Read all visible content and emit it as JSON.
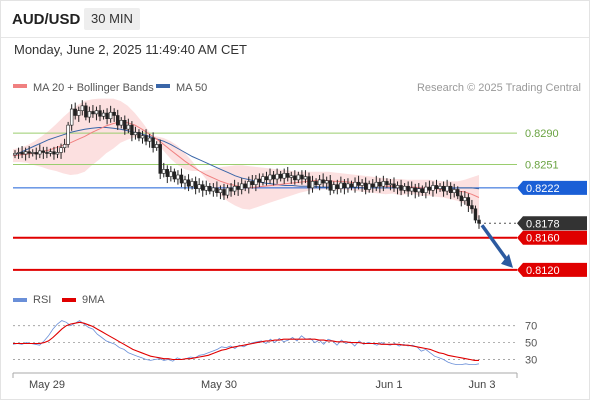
{
  "header": {
    "symbol": "AUD/USD",
    "timeframe": "30 MIN",
    "datetime": "Monday, June 2, 2025 11:49:40 AM CET"
  },
  "legend": {
    "ma20": "MA 20 + Bollinger Bands",
    "ma50": "MA 50",
    "credit": "Research © 2025 Trading Central",
    "rsi": "RSI",
    "rsi_ma": "9MA"
  },
  "colors": {
    "ma20": "#f08080",
    "bollinger": "#fbdada",
    "ma50": "#3a66a8",
    "green_level": "#9acd6e",
    "pivot": "#1a5fd6",
    "support": "#e00000",
    "current": "#333333",
    "candle_up": "#ffffff",
    "candle_down": "#222222",
    "rsi": "#6a8fd8",
    "rsi_ma": "#e00000",
    "arrow": "#2c5aa0"
  },
  "chart_data": [
    {
      "type": "candlestick",
      "x_labels": [
        "May 29",
        "May 30",
        "Jun 1",
        "Jun 3"
      ],
      "ylim": [
        0.81,
        0.833
      ],
      "levels": [
        {
          "value": 0.829,
          "label": "0.8290",
          "style": "green"
        },
        {
          "value": 0.8251,
          "label": "0.8251",
          "style": "green"
        },
        {
          "value": 0.8222,
          "label": "0.8222",
          "style": "pivot"
        },
        {
          "value": 0.8178,
          "label": "0.8178",
          "style": "current"
        },
        {
          "value": 0.816,
          "label": "0.8160",
          "style": "support"
        },
        {
          "value": 0.812,
          "label": "0.8120",
          "style": "support"
        }
      ],
      "close": [
        0.8265,
        0.8266,
        0.8264,
        0.8267,
        0.8265,
        0.8266,
        0.8264,
        0.8268,
        0.8266,
        0.8265,
        0.8267,
        0.8264,
        0.8266,
        0.8272,
        0.8276,
        0.83,
        0.832,
        0.8312,
        0.8318,
        0.8324,
        0.831,
        0.8317,
        0.8314,
        0.8318,
        0.8311,
        0.8315,
        0.8308,
        0.8316,
        0.8312,
        0.83,
        0.8306,
        0.8295,
        0.83,
        0.8288,
        0.8291,
        0.8284,
        0.8287,
        0.828,
        0.8284,
        0.8272,
        0.8276,
        0.824,
        0.8245,
        0.8236,
        0.8242,
        0.8233,
        0.8238,
        0.8228,
        0.8232,
        0.8224,
        0.823,
        0.8221,
        0.8226,
        0.8219,
        0.8224,
        0.8218,
        0.8222,
        0.8216,
        0.822,
        0.8213,
        0.8222,
        0.8218,
        0.8224,
        0.822,
        0.8227,
        0.8222,
        0.823,
        0.8226,
        0.8233,
        0.8229,
        0.8236,
        0.8232,
        0.8238,
        0.8233,
        0.8239,
        0.8234,
        0.824,
        0.8235,
        0.8237,
        0.8232,
        0.8238,
        0.8233,
        0.8236,
        0.8222,
        0.823,
        0.8226,
        0.8232,
        0.8228,
        0.8231,
        0.8219,
        0.8226,
        0.8221,
        0.8228,
        0.8222,
        0.8227,
        0.8223,
        0.8229,
        0.8225,
        0.8228,
        0.822,
        0.8227,
        0.8223,
        0.8229,
        0.8224,
        0.823,
        0.8226,
        0.8227,
        0.8222,
        0.8225,
        0.8219,
        0.8224,
        0.8218,
        0.8222,
        0.8217,
        0.8221,
        0.8216,
        0.8223,
        0.8219,
        0.8225,
        0.8221,
        0.8224,
        0.8218,
        0.8224,
        0.8216,
        0.822,
        0.8212,
        0.8206,
        0.821,
        0.82,
        0.8196,
        0.8182,
        0.8178
      ],
      "ma20": [
        0.8262,
        0.8263,
        0.8264,
        0.8265,
        0.8267,
        0.8269,
        0.8272,
        0.8275,
        0.8278,
        0.8282,
        0.8286,
        0.8291,
        0.8295,
        0.8299,
        0.8302,
        0.8304,
        0.8303,
        0.83,
        0.8295,
        0.8289,
        0.8283,
        0.8276,
        0.8269,
        0.8262,
        0.8255,
        0.8249,
        0.8243,
        0.8238,
        0.8234,
        0.823,
        0.8227,
        0.8225,
        0.8223,
        0.8222,
        0.8223,
        0.8224,
        0.8225,
        0.8226,
        0.8227,
        0.8228,
        0.8229,
        0.823,
        0.8231,
        0.8231,
        0.8231,
        0.823,
        0.823,
        0.8229,
        0.8228,
        0.8227,
        0.8226,
        0.8225,
        0.8224,
        0.8224,
        0.8223,
        0.8223,
        0.8223,
        0.8222,
        0.8222,
        0.8221,
        0.822,
        0.8219,
        0.8218,
        0.8217,
        0.8214,
        0.821
      ],
      "ma50": [
        0.8262,
        0.8266,
        0.827,
        0.8274,
        0.8278,
        0.8282,
        0.8285,
        0.8288,
        0.8291,
        0.8293,
        0.8295,
        0.8296,
        0.8297,
        0.8297,
        0.8296,
        0.8295,
        0.8293,
        0.8291,
        0.8289,
        0.8286,
        0.8283,
        0.828,
        0.8276,
        0.8271,
        0.8266,
        0.8261,
        0.8257,
        0.8253,
        0.8249,
        0.8245,
        0.8241,
        0.8237,
        0.8234,
        0.8232,
        0.823,
        0.8228,
        0.8227,
        0.8226,
        0.8225,
        0.8225,
        0.8224,
        0.8224,
        0.8224,
        0.8223,
        0.8223,
        0.8223,
        0.8223,
        0.8223,
        0.8223,
        0.8222,
        0.8222,
        0.8222,
        0.8222,
        0.8222,
        0.8222,
        0.8222,
        0.8222,
        0.8222,
        0.8221,
        0.8221,
        0.8221,
        0.8221,
        0.8222,
        0.8222,
        0.8222,
        0.8221
      ],
      "bb_upper": [
        0.827,
        0.8272,
        0.8275,
        0.828,
        0.8286,
        0.8293,
        0.8301,
        0.831,
        0.8318,
        0.8325,
        0.833,
        0.8332,
        0.8333,
        0.8333,
        0.8333,
        0.833,
        0.8324,
        0.8315,
        0.8304,
        0.8292,
        0.828,
        0.8268,
        0.8258,
        0.825,
        0.8245,
        0.8243,
        0.8243,
        0.8244,
        0.8246,
        0.8248,
        0.8249,
        0.825,
        0.825,
        0.8249,
        0.8248,
        0.8247,
        0.8246,
        0.8245,
        0.8244,
        0.8243,
        0.8242,
        0.8242,
        0.8242,
        0.8242,
        0.8242,
        0.8241,
        0.824,
        0.8239,
        0.8238,
        0.8237,
        0.8236,
        0.8235,
        0.8234,
        0.8233,
        0.8233,
        0.8232,
        0.8232,
        0.8232,
        0.8232,
        0.8231,
        0.823,
        0.823,
        0.823,
        0.8232,
        0.8235,
        0.8238
      ],
      "bb_lower": [
        0.8254,
        0.8254,
        0.8253,
        0.825,
        0.8248,
        0.8245,
        0.8243,
        0.824,
        0.8238,
        0.8239,
        0.8242,
        0.825,
        0.8257,
        0.8265,
        0.8271,
        0.8278,
        0.8282,
        0.8285,
        0.8286,
        0.8286,
        0.8286,
        0.8284,
        0.828,
        0.8274,
        0.8265,
        0.8255,
        0.8243,
        0.8232,
        0.8222,
        0.8212,
        0.8205,
        0.82,
        0.8196,
        0.8195,
        0.8198,
        0.8201,
        0.8204,
        0.8207,
        0.821,
        0.8213,
        0.8216,
        0.8218,
        0.822,
        0.822,
        0.822,
        0.8219,
        0.822,
        0.8219,
        0.8218,
        0.8217,
        0.8216,
        0.8215,
        0.8214,
        0.8215,
        0.8213,
        0.8214,
        0.8214,
        0.8212,
        0.8212,
        0.8211,
        0.821,
        0.8208,
        0.8206,
        0.8202,
        0.8193,
        0.8182
      ],
      "forecast_arrow": {
        "from": 0.8178,
        "to": 0.812
      }
    },
    {
      "type": "line",
      "name": "RSI",
      "yticks": [
        70,
        50,
        30
      ],
      "ylim": [
        20,
        85
      ],
      "rsi": [
        48,
        49,
        48,
        50,
        49,
        48,
        47,
        52,
        58,
        66,
        72,
        76,
        74,
        70,
        73,
        76,
        72,
        68,
        66,
        60,
        56,
        52,
        50,
        48,
        44,
        42,
        38,
        36,
        34,
        32,
        30,
        29,
        30,
        31,
        29,
        30,
        28,
        32,
        30,
        31,
        33,
        32,
        35,
        36,
        38,
        40,
        42,
        45,
        44,
        46,
        43,
        47,
        45,
        48,
        50,
        51,
        52,
        49,
        54,
        50,
        55,
        51,
        53,
        56,
        52,
        58,
        54,
        55,
        50,
        53,
        48,
        54,
        52,
        47,
        53,
        49,
        51,
        46,
        52,
        48,
        50,
        49,
        47,
        50,
        48,
        47,
        49,
        46,
        48,
        46,
        47,
        45,
        40,
        42,
        38,
        34,
        32,
        30,
        27,
        25,
        24,
        24,
        25,
        24,
        24,
        25
      ],
      "rsi_ma": [
        49,
        49,
        49,
        49,
        49,
        49,
        49,
        50,
        52,
        56,
        61,
        66,
        70,
        72,
        73,
        74,
        73,
        71,
        69,
        66,
        63,
        60,
        57,
        54,
        51,
        48,
        45,
        42,
        40,
        38,
        36,
        34,
        33,
        32,
        31,
        31,
        30,
        30,
        30,
        31,
        31,
        32,
        33,
        34,
        35,
        37,
        39,
        41,
        42,
        44,
        45,
        46,
        47,
        48,
        49,
        50,
        51,
        52,
        52,
        53,
        53,
        54,
        54,
        54,
        54,
        54,
        54,
        54,
        54,
        53,
        53,
        52,
        52,
        51,
        51,
        51,
        50,
        50,
        50,
        49,
        49,
        49,
        49,
        48,
        48,
        48,
        48,
        48,
        47,
        47,
        46,
        45,
        44,
        43,
        42,
        40,
        38,
        37,
        35,
        34,
        33,
        32,
        31,
        30,
        29,
        29
      ]
    }
  ]
}
